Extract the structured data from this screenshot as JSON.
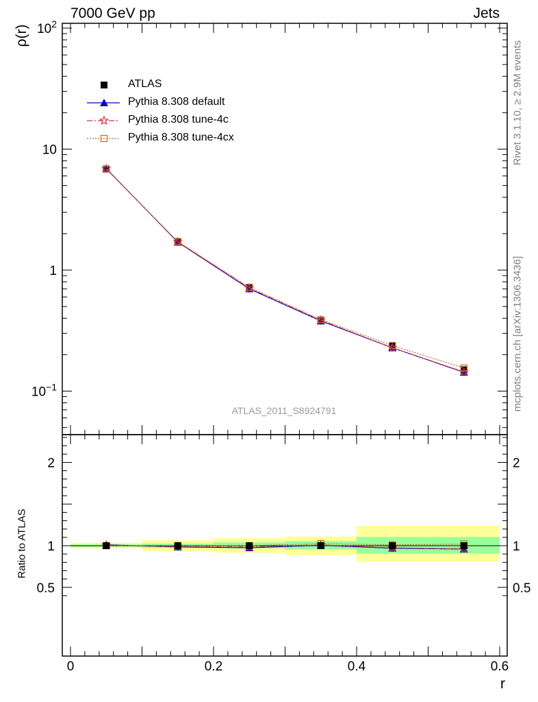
{
  "title_left": "7000 GeV pp",
  "title_right": "Jets",
  "ylabel": "ρ(r)",
  "xlabel": "r",
  "ratio_ylabel": "Ratio to ATLAS",
  "side_text_rivet": "Rivet 3.1.10, ≥ 2.9M events",
  "side_text_mcplots": "mcplots.cern.ch [arXiv:1306.3436]",
  "watermark": "ATLAS_2011_S8924791",
  "colors": {
    "data": "#000000",
    "default": "#0000cc",
    "tune4c": "#e03030",
    "tune4cx": "#cc6622",
    "band_inner": "#99ff99",
    "band_outer": "#ffff99"
  },
  "legend": [
    {
      "label": "ATLAS",
      "marker": "filled-square"
    },
    {
      "label": "Pythia 8.308 default",
      "marker": "filled-triangle"
    },
    {
      "label": "Pythia 8.308 tune-4c",
      "marker": "open-star"
    },
    {
      "label": "Pythia 8.308 tune-4cx",
      "marker": "open-square"
    }
  ],
  "chart_data": [
    {
      "type": "line",
      "panel": "main",
      "ylabel": "ρ(r)",
      "yscale": "log",
      "xlim": [
        -0.015,
        0.6
      ],
      "ylim": [
        0.045,
        110
      ],
      "x": [
        0.05,
        0.15,
        0.25,
        0.35,
        0.45,
        0.55
      ],
      "x_bin_edges": [
        0.0,
        0.1,
        0.2,
        0.3,
        0.4,
        0.5,
        0.6
      ],
      "y_ticks": [
        "10^−1",
        "1",
        "10",
        "10^2"
      ],
      "series": [
        {
          "name": "ATLAS",
          "values": [
            6.85,
            1.72,
            0.72,
            0.38,
            0.235,
            0.15
          ]
        },
        {
          "name": "Pythia 8.308 default",
          "values": [
            6.9,
            1.7,
            0.7,
            0.38,
            0.228,
            0.143
          ]
        },
        {
          "name": "Pythia 8.308 tune-4c",
          "values": [
            6.88,
            1.71,
            0.71,
            0.385,
            0.228,
            0.144
          ]
        },
        {
          "name": "Pythia 8.308 tune-4cx",
          "values": [
            6.83,
            1.72,
            0.72,
            0.39,
            0.238,
            0.155
          ]
        }
      ]
    },
    {
      "type": "line",
      "panel": "ratio",
      "ylabel": "Ratio to ATLAS",
      "xlabel": "r",
      "xlim": [
        -0.015,
        0.6
      ],
      "ylim": [
        0.4,
        2.3
      ],
      "x_ticks": [
        "0",
        "0.2",
        "0.4",
        "0.6"
      ],
      "y_ticks": [
        "0.5",
        "1",
        "2"
      ],
      "x": [
        0.05,
        0.15,
        0.25,
        0.35,
        0.45,
        0.55
      ],
      "x_bin_edges": [
        0.0,
        0.1,
        0.2,
        0.3,
        0.4,
        0.5,
        0.6
      ],
      "band_inner": {
        "lo": [
          0.985,
          0.975,
          0.97,
          0.955,
          0.905,
          0.905
        ],
        "hi": [
          1.015,
          1.025,
          1.04,
          1.055,
          1.105,
          1.105
        ]
      },
      "band_outer": {
        "lo": [
          0.97,
          0.935,
          0.915,
          0.885,
          0.81,
          0.81
        ],
        "hi": [
          1.035,
          1.065,
          1.09,
          1.11,
          1.24,
          1.24
        ]
      },
      "series": [
        {
          "name": "Pythia 8.308 default",
          "values": [
            1.01,
            0.985,
            0.975,
            1.005,
            0.97,
            0.96
          ]
        },
        {
          "name": "Pythia 8.308 tune-4c",
          "values": [
            1.005,
            0.99,
            0.985,
            1.01,
            0.975,
            0.96
          ]
        },
        {
          "name": "Pythia 8.308 tune-4cx",
          "values": [
            1.0,
            1.0,
            1.0,
            1.025,
            1.01,
            1.02
          ]
        }
      ]
    }
  ]
}
